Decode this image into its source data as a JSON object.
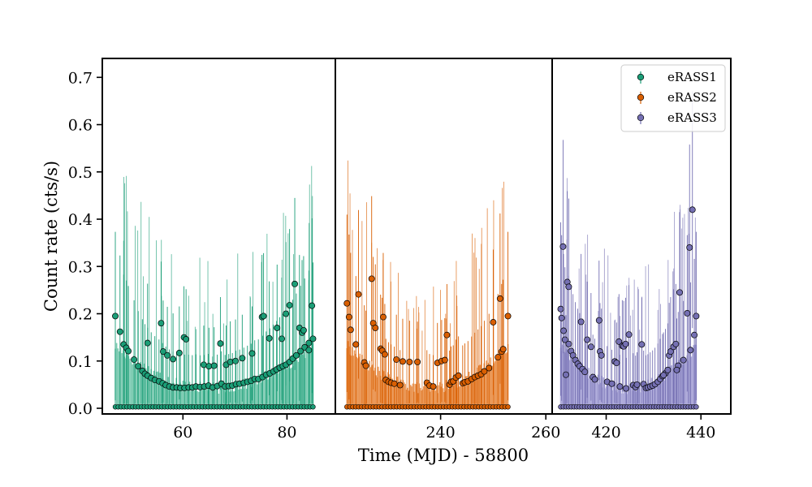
{
  "chart_data": {
    "type": "scatter",
    "xlabel": "Time (MJD) - 58800",
    "ylabel": "Count rate (cts/s)",
    "ylim": [
      -0.012,
      0.74
    ],
    "yticks": [
      "0.0",
      "0.1",
      "0.2",
      "0.3",
      "0.4",
      "0.5",
      "0.6",
      "0.7"
    ],
    "legend": {
      "placement": "top-right",
      "entries": [
        "eRASS1",
        "eRASS2",
        "eRASS3"
      ]
    },
    "colors": {
      "eRASS1": "#1b9e77",
      "eRASS2": "#d95f02",
      "eRASS3": "#7570b3"
    },
    "panels": [
      {
        "name": "eRASS1",
        "xlim": [
          44.5,
          89.3
        ],
        "xticks": [
          "60",
          "80"
        ],
        "tick_values": [
          60,
          80
        ],
        "series": [
          {
            "name": "eRASS1",
            "points": [
              [
                47.0,
                0.195
              ],
              [
                47.9,
                0.162
              ],
              [
                48.6,
                0.135
              ],
              [
                49.1,
                0.128
              ],
              [
                49.5,
                0.121
              ],
              [
                50.6,
                0.103
              ],
              [
                51.4,
                0.089
              ],
              [
                52.2,
                0.079
              ],
              [
                52.7,
                0.073
              ],
              [
                53.2,
                0.069
              ],
              [
                53.9,
                0.064
              ],
              [
                54.6,
                0.06
              ],
              [
                55.4,
                0.057
              ],
              [
                56.1,
                0.053
              ],
              [
                56.7,
                0.049
              ],
              [
                57.4,
                0.046
              ],
              [
                58.1,
                0.044
              ],
              [
                58.8,
                0.044
              ],
              [
                59.5,
                0.043
              ],
              [
                60.3,
                0.043
              ],
              [
                61.1,
                0.044
              ],
              [
                61.8,
                0.044
              ],
              [
                62.5,
                0.046
              ],
              [
                63.3,
                0.045
              ],
              [
                64.1,
                0.046
              ],
              [
                64.9,
                0.048
              ],
              [
                65.7,
                0.044
              ],
              [
                66.6,
                0.047
              ],
              [
                67.4,
                0.052
              ],
              [
                68.1,
                0.046
              ],
              [
                68.8,
                0.047
              ],
              [
                69.5,
                0.048
              ],
              [
                70.2,
                0.051
              ],
              [
                70.9,
                0.052
              ],
              [
                71.7,
                0.054
              ],
              [
                72.4,
                0.056
              ],
              [
                73.1,
                0.058
              ],
              [
                73.8,
                0.062
              ],
              [
                74.5,
                0.062
              ],
              [
                75.3,
                0.066
              ],
              [
                76.0,
                0.071
              ],
              [
                76.7,
                0.074
              ],
              [
                77.4,
                0.078
              ],
              [
                78.0,
                0.082
              ],
              [
                78.6,
                0.086
              ],
              [
                79.2,
                0.089
              ],
              [
                79.8,
                0.092
              ],
              [
                80.5,
                0.098
              ],
              [
                81.1,
                0.105
              ],
              [
                81.8,
                0.112
              ],
              [
                82.6,
                0.121
              ],
              [
                83.4,
                0.129
              ],
              [
                84.2,
                0.138
              ],
              [
                85.0,
                0.147
              ],
              [
                53.2,
                0.138
              ],
              [
                55.8,
                0.18
              ],
              [
                56.2,
                0.12
              ],
              [
                57.0,
                0.112
              ],
              [
                58.1,
                0.104
              ],
              [
                59.3,
                0.117
              ],
              [
                60.2,
                0.15
              ],
              [
                60.6,
                0.146
              ],
              [
                64.0,
                0.092
              ],
              [
                65.0,
                0.089
              ],
              [
                66.0,
                0.09
              ],
              [
                67.2,
                0.137
              ],
              [
                68.3,
                0.092
              ],
              [
                69.1,
                0.098
              ],
              [
                70.1,
                0.1
              ],
              [
                71.4,
                0.106
              ],
              [
                73.3,
                0.116
              ],
              [
                75.2,
                0.193
              ],
              [
                75.5,
                0.195
              ],
              [
                76.6,
                0.148
              ],
              [
                78.1,
                0.17
              ],
              [
                79.0,
                0.147
              ],
              [
                79.8,
                0.2
              ],
              [
                80.5,
                0.218
              ],
              [
                81.5,
                0.263
              ],
              [
                82.4,
                0.17
              ],
              [
                82.9,
                0.16
              ],
              [
                83.2,
                0.165
              ],
              [
                84.8,
                0.217
              ],
              [
                84.2,
                0.123
              ]
            ]
          }
        ]
      },
      {
        "name": "eRASS2",
        "xlim": [
          220.0,
          261.2
        ],
        "xticks": [
          "240",
          "260"
        ],
        "tick_values": [
          240,
          260
        ],
        "series": [
          {
            "name": "eRASS2",
            "points": [
              [
                222.2,
                0.222
              ],
              [
                222.6,
                0.193
              ],
              [
                222.9,
                0.166
              ],
              [
                223.9,
                0.135
              ],
              [
                224.4,
                0.241
              ],
              [
                225.5,
                0.097
              ],
              [
                225.8,
                0.09
              ],
              [
                226.9,
                0.274
              ],
              [
                227.2,
                0.18
              ],
              [
                227.6,
                0.17
              ],
              [
                228.6,
                0.126
              ],
              [
                228.9,
                0.122
              ],
              [
                229.1,
                0.193
              ],
              [
                229.4,
                0.114
              ],
              [
                229.6,
                0.06
              ],
              [
                230.1,
                0.056
              ],
              [
                230.6,
                0.054
              ],
              [
                231.2,
                0.052
              ],
              [
                231.6,
                0.103
              ],
              [
                232.3,
                0.049
              ],
              [
                232.8,
                0.099
              ],
              [
                234.1,
                0.098
              ],
              [
                235.6,
                0.098
              ],
              [
                237.4,
                0.054
              ],
              [
                237.9,
                0.048
              ],
              [
                238.6,
                0.046
              ],
              [
                239.4,
                0.096
              ],
              [
                240.2,
                0.1
              ],
              [
                240.8,
                0.102
              ],
              [
                241.2,
                0.155
              ],
              [
                241.7,
                0.05
              ],
              [
                242.0,
                0.056
              ],
              [
                242.4,
                0.057
              ],
              [
                242.9,
                0.065
              ],
              [
                243.4,
                0.069
              ],
              [
                244.2,
                0.053
              ],
              [
                244.6,
                0.055
              ],
              [
                245.2,
                0.057
              ],
              [
                245.9,
                0.062
              ],
              [
                246.5,
                0.066
              ],
              [
                247.1,
                0.069
              ],
              [
                247.7,
                0.072
              ],
              [
                248.3,
                0.078
              ],
              [
                249.2,
                0.085
              ],
              [
                250.0,
                0.182
              ],
              [
                250.9,
                0.108
              ],
              [
                251.3,
                0.232
              ],
              [
                251.6,
                0.12
              ],
              [
                251.9,
                0.125
              ],
              [
                252.8,
                0.195
              ]
            ]
          }
        ]
      },
      {
        "name": "eRASS3",
        "xlim": [
          408.6,
          446.3
        ],
        "xticks": [
          "420",
          "440"
        ],
        "tick_values": [
          420,
          440
        ],
        "series": [
          {
            "name": "eRASS3",
            "points": [
              [
                410.4,
                0.21
              ],
              [
                410.6,
                0.191
              ],
              [
                410.9,
                0.342
              ],
              [
                411.0,
                0.164
              ],
              [
                411.3,
                0.145
              ],
              [
                411.5,
                0.071
              ],
              [
                411.8,
                0.267
              ],
              [
                412.1,
                0.257
              ],
              [
                412.1,
                0.136
              ],
              [
                412.6,
                0.121
              ],
              [
                413.0,
                0.112
              ],
              [
                413.5,
                0.102
              ],
              [
                414.0,
                0.094
              ],
              [
                414.4,
                0.089
              ],
              [
                414.7,
                0.183
              ],
              [
                415.0,
                0.083
              ],
              [
                415.5,
                0.077
              ],
              [
                416.0,
                0.145
              ],
              [
                416.8,
                0.13
              ],
              [
                417.2,
                0.066
              ],
              [
                417.6,
                0.061
              ],
              [
                418.5,
                0.186
              ],
              [
                418.7,
                0.12
              ],
              [
                419.0,
                0.112
              ],
              [
                420.2,
                0.056
              ],
              [
                421.2,
                0.052
              ],
              [
                421.8,
                0.099
              ],
              [
                422.2,
                0.096
              ],
              [
                422.7,
                0.141
              ],
              [
                422.9,
                0.046
              ],
              [
                423.4,
                0.132
              ],
              [
                423.7,
                0.131
              ],
              [
                424.1,
                0.136
              ],
              [
                424.2,
                0.042
              ],
              [
                424.8,
                0.156
              ],
              [
                425.7,
                0.049
              ],
              [
                426.2,
                0.045
              ],
              [
                426.5,
                0.05
              ],
              [
                427.5,
                0.135
              ],
              [
                427.9,
                0.051
              ],
              [
                428.4,
                0.043
              ],
              [
                428.8,
                0.044
              ],
              [
                429.3,
                0.046
              ],
              [
                429.8,
                0.048
              ],
              [
                430.3,
                0.051
              ],
              [
                430.9,
                0.056
              ],
              [
                431.4,
                0.062
              ],
              [
                431.9,
                0.068
              ],
              [
                432.5,
                0.074
              ],
              [
                433.0,
                0.081
              ],
              [
                433.3,
                0.112
              ],
              [
                433.6,
                0.12
              ],
              [
                434.2,
                0.13
              ],
              [
                434.7,
                0.136
              ],
              [
                435.2,
                0.09
              ],
              [
                435.5,
                0.245
              ],
              [
                436.3,
                0.102
              ],
              [
                437.1,
                0.201
              ],
              [
                437.6,
                0.34
              ],
              [
                437.8,
                0.123
              ],
              [
                438.2,
                0.42
              ],
              [
                438.6,
                0.155
              ],
              [
                439.0,
                0.195
              ],
              [
                432.1,
                0.07
              ],
              [
                434.9,
                0.081
              ]
            ]
          }
        ]
      }
    ]
  }
}
